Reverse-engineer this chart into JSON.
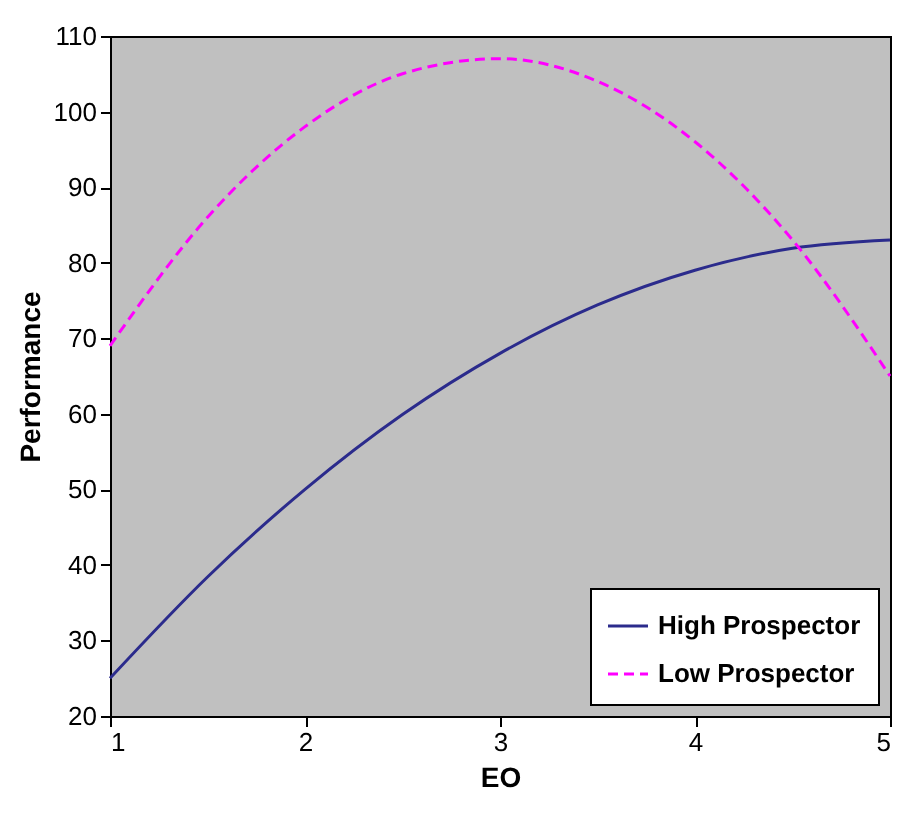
{
  "chart_data": {
    "type": "line",
    "xlabel": "EO",
    "ylabel": "Performance",
    "x": [
      1,
      1.5,
      2,
      2.5,
      3,
      3.5,
      4,
      4.5,
      5
    ],
    "series": [
      {
        "name": "High Prospector",
        "color": "#2b2b8c",
        "line_style": "solid",
        "values": [
          25,
          38.4,
          50,
          59.9,
          68,
          74.4,
          79,
          81.9,
          83
        ]
      },
      {
        "name": "Low Prospector",
        "color": "#ff00ff",
        "line_style": "dashed",
        "values": [
          69,
          86,
          98,
          105,
          107,
          104,
          96,
          83,
          65
        ]
      }
    ],
    "xlim": [
      1,
      5
    ],
    "xticks": [
      1,
      2,
      3,
      4,
      5
    ],
    "ylim": [
      20,
      110
    ],
    "yticks": [
      20,
      30,
      40,
      50,
      60,
      70,
      80,
      90,
      100,
      110
    ],
    "grid": false,
    "legend": "bottom right",
    "marker": "none"
  }
}
